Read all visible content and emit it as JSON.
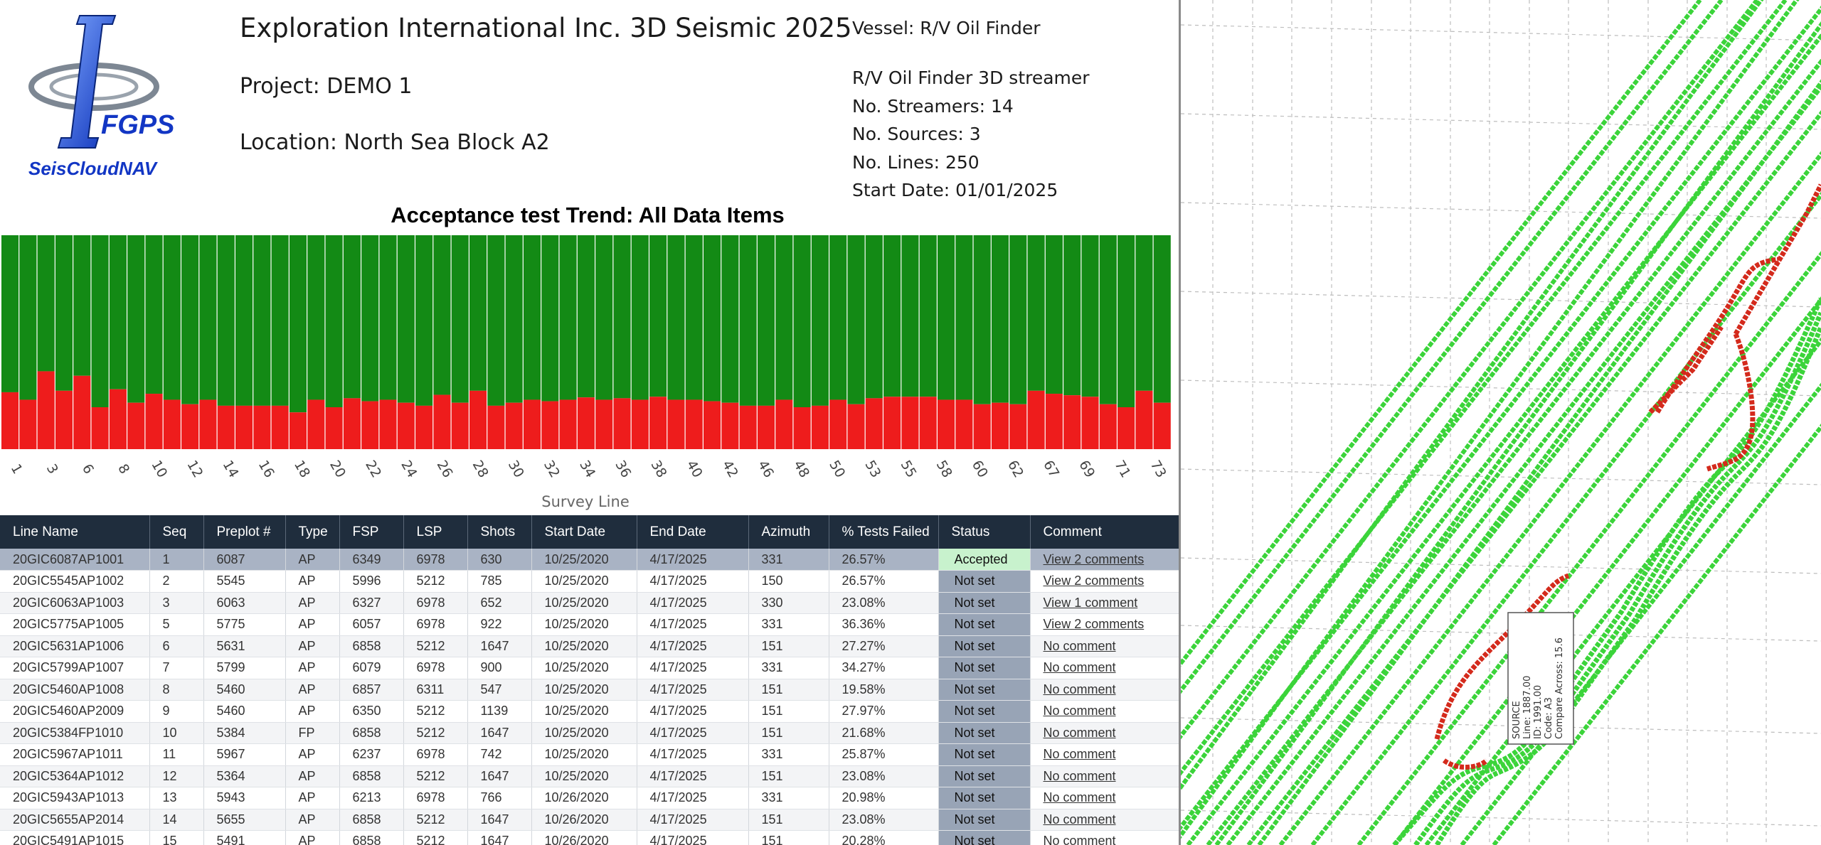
{
  "header": {
    "logo_company": "FGPS",
    "logo_product": "SeisCloudNAV",
    "title": "Exploration International Inc. 3D Seismic 2025",
    "project": "Project: DEMO 1",
    "location": "Location: North Sea Block A2",
    "vessel": "Vessel: R/V Oil Finder",
    "vessel_info": [
      "R/V Oil Finder 3D streamer",
      "No. Streamers: 14",
      "No. Sources: 3",
      "No. Lines: 250",
      "Start Date: 01/01/2025"
    ]
  },
  "colors": {
    "pass": "#138a15",
    "fail": "#ee1c1c",
    "header_bg": "#1f2d3d",
    "accepted_bg": "#c8f2cd",
    "status_bg": "#98a4b6",
    "map_line": "#3bd43a",
    "map_fail": "#d42a1c"
  },
  "chart_data": {
    "type": "bar",
    "stacked": true,
    "title": "Acceptance test Trend: All Data Items",
    "xlabel": "Survey Line",
    "ylabel": "",
    "ylim": [
      0,
      100
    ],
    "tick_labels": [
      "1",
      "3",
      "6",
      "8",
      "10",
      "12",
      "14",
      "16",
      "18",
      "20",
      "22",
      "24",
      "26",
      "28",
      "30",
      "32",
      "34",
      "36",
      "38",
      "40",
      "42",
      "46",
      "48",
      "50",
      "53",
      "55",
      "58",
      "60",
      "62",
      "67",
      "69",
      "71",
      "73"
    ],
    "series": [
      {
        "color": "#ee1c1c",
        "values": [
          26.6,
          23.1,
          36.4,
          27.3,
          34.3,
          19.6,
          28.0,
          21.7,
          25.9,
          23.1,
          21.0,
          23.1,
          20.3,
          20.3,
          20.3,
          20.3,
          17.2,
          23.1,
          19.6,
          23.8,
          22.4,
          23.1,
          21.7,
          20.3,
          25.4,
          21.7,
          27.3,
          20.3,
          21.7,
          23.1,
          22.4,
          23.1,
          24.2,
          23.1,
          23.8,
          23.1,
          24.5,
          23.1,
          23.1,
          22.4,
          21.7,
          20.3,
          20.3,
          23.1,
          19.6,
          20.3,
          23.1,
          21.0,
          23.8,
          24.5,
          24.5,
          24.5,
          23.1,
          23.1,
          21.0,
          21.7,
          21.0,
          27.3,
          25.9,
          25.2,
          24.5,
          21.0,
          19.6,
          27.3,
          21.7
        ]
      },
      {
        "color": "#138a15",
        "values": [
          73.4,
          76.9,
          63.6,
          72.7,
          65.7,
          80.4,
          72.0,
          78.3,
          74.1,
          76.9,
          79.0,
          76.9,
          79.7,
          79.7,
          79.7,
          79.7,
          82.8,
          76.9,
          80.4,
          76.2,
          77.6,
          76.9,
          78.3,
          79.7,
          74.6,
          78.3,
          72.7,
          79.7,
          78.3,
          76.9,
          77.6,
          76.9,
          75.8,
          76.9,
          76.2,
          76.9,
          75.5,
          76.9,
          76.9,
          77.6,
          78.3,
          79.7,
          79.7,
          76.9,
          80.4,
          79.7,
          76.9,
          79.0,
          76.2,
          75.5,
          75.5,
          75.5,
          76.9,
          76.9,
          79.0,
          78.3,
          79.0,
          72.7,
          74.1,
          74.8,
          75.5,
          79.0,
          80.4,
          72.7,
          78.3
        ]
      }
    ]
  },
  "table": {
    "columns": [
      "Line Name",
      "Seq",
      "Preplot #",
      "Type",
      "FSP",
      "LSP",
      "Shots",
      "Start Date",
      "End Date",
      "Azimuth",
      "% Tests Failed",
      "Status",
      "Comment"
    ],
    "rows": [
      [
        "20GIC6087AP1001",
        "1",
        "6087",
        "AP",
        "6349",
        "6978",
        "630",
        "10/25/2020",
        "4/17/2025",
        "331",
        "26.57%",
        "Accepted",
        "View 2 comments"
      ],
      [
        "20GIC5545AP1002",
        "2",
        "5545",
        "AP",
        "5996",
        "5212",
        "785",
        "10/25/2020",
        "4/17/2025",
        "150",
        "26.57%",
        "Not set",
        "View 2 comments"
      ],
      [
        "20GIC6063AP1003",
        "3",
        "6063",
        "AP",
        "6327",
        "6978",
        "652",
        "10/25/2020",
        "4/17/2025",
        "330",
        "23.08%",
        "Not set",
        "View 1 comment"
      ],
      [
        "20GIC5775AP1005",
        "5",
        "5775",
        "AP",
        "6057",
        "6978",
        "922",
        "10/25/2020",
        "4/17/2025",
        "331",
        "36.36%",
        "Not set",
        "View 2 comments"
      ],
      [
        "20GIC5631AP1006",
        "6",
        "5631",
        "AP",
        "6858",
        "5212",
        "1647",
        "10/25/2020",
        "4/17/2025",
        "151",
        "27.27%",
        "Not set",
        "No comment"
      ],
      [
        "20GIC5799AP1007",
        "7",
        "5799",
        "AP",
        "6079",
        "6978",
        "900",
        "10/25/2020",
        "4/17/2025",
        "331",
        "34.27%",
        "Not set",
        "No comment"
      ],
      [
        "20GIC5460AP1008",
        "8",
        "5460",
        "AP",
        "6857",
        "6311",
        "547",
        "10/25/2020",
        "4/17/2025",
        "151",
        "19.58%",
        "Not set",
        "No comment"
      ],
      [
        "20GIC5460AP2009",
        "9",
        "5460",
        "AP",
        "6350",
        "5212",
        "1139",
        "10/25/2020",
        "4/17/2025",
        "151",
        "27.97%",
        "Not set",
        "No comment"
      ],
      [
        "20GIC5384FP1010",
        "10",
        "5384",
        "FP",
        "6858",
        "5212",
        "1647",
        "10/25/2020",
        "4/17/2025",
        "151",
        "21.68%",
        "Not set",
        "No comment"
      ],
      [
        "20GIC5967AP1011",
        "11",
        "5967",
        "AP",
        "6237",
        "6978",
        "742",
        "10/25/2020",
        "4/17/2025",
        "331",
        "25.87%",
        "Not set",
        "No comment"
      ],
      [
        "20GIC5364AP1012",
        "12",
        "5364",
        "AP",
        "6858",
        "5212",
        "1647",
        "10/25/2020",
        "4/17/2025",
        "151",
        "23.08%",
        "Not set",
        "No comment"
      ],
      [
        "20GIC5943AP1013",
        "13",
        "5943",
        "AP",
        "6213",
        "6978",
        "766",
        "10/26/2020",
        "4/17/2025",
        "331",
        "20.98%",
        "Not set",
        "No comment"
      ],
      [
        "20GIC5655AP2014",
        "14",
        "5655",
        "AP",
        "6858",
        "5212",
        "1647",
        "10/26/2020",
        "4/17/2025",
        "151",
        "23.08%",
        "Not set",
        "No comment"
      ],
      [
        "20GIC5491AP1015",
        "15",
        "5491",
        "AP",
        "6858",
        "5212",
        "1647",
        "10/26/2020",
        "4/17/2025",
        "151",
        "20.28%",
        "Not set",
        "No comment"
      ]
    ],
    "selected_row": 0
  },
  "map": {
    "tooltip": [
      "SOURCE",
      "Line: 1887.00",
      "ID: 1991.00",
      "Code: A3",
      "Compare Across: 15.6"
    ]
  }
}
